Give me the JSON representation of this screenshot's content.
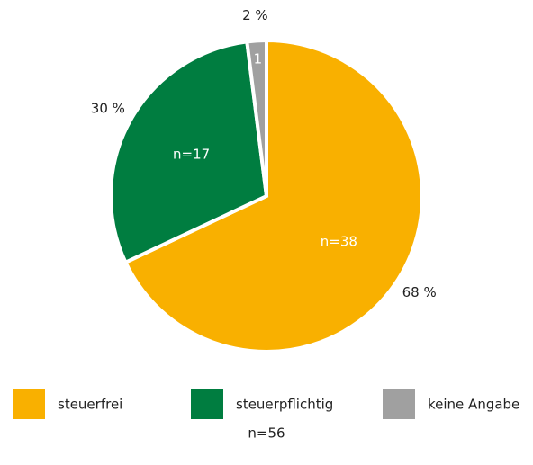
{
  "chart_data": {
    "type": "pie",
    "categories": [
      "steuerfrei",
      "steuerpflichtig",
      "keine Angabe"
    ],
    "values": [
      68,
      30,
      2
    ],
    "value_labels": [
      "68 %",
      "30 %",
      "2 %"
    ],
    "counts": [
      38,
      17,
      1
    ],
    "count_labels": [
      "n=38",
      "n=17",
      "1"
    ],
    "colors": [
      "#f9b000",
      "#007d40",
      "#a0a0a0"
    ],
    "legend": "bottom",
    "note": "n=56"
  }
}
